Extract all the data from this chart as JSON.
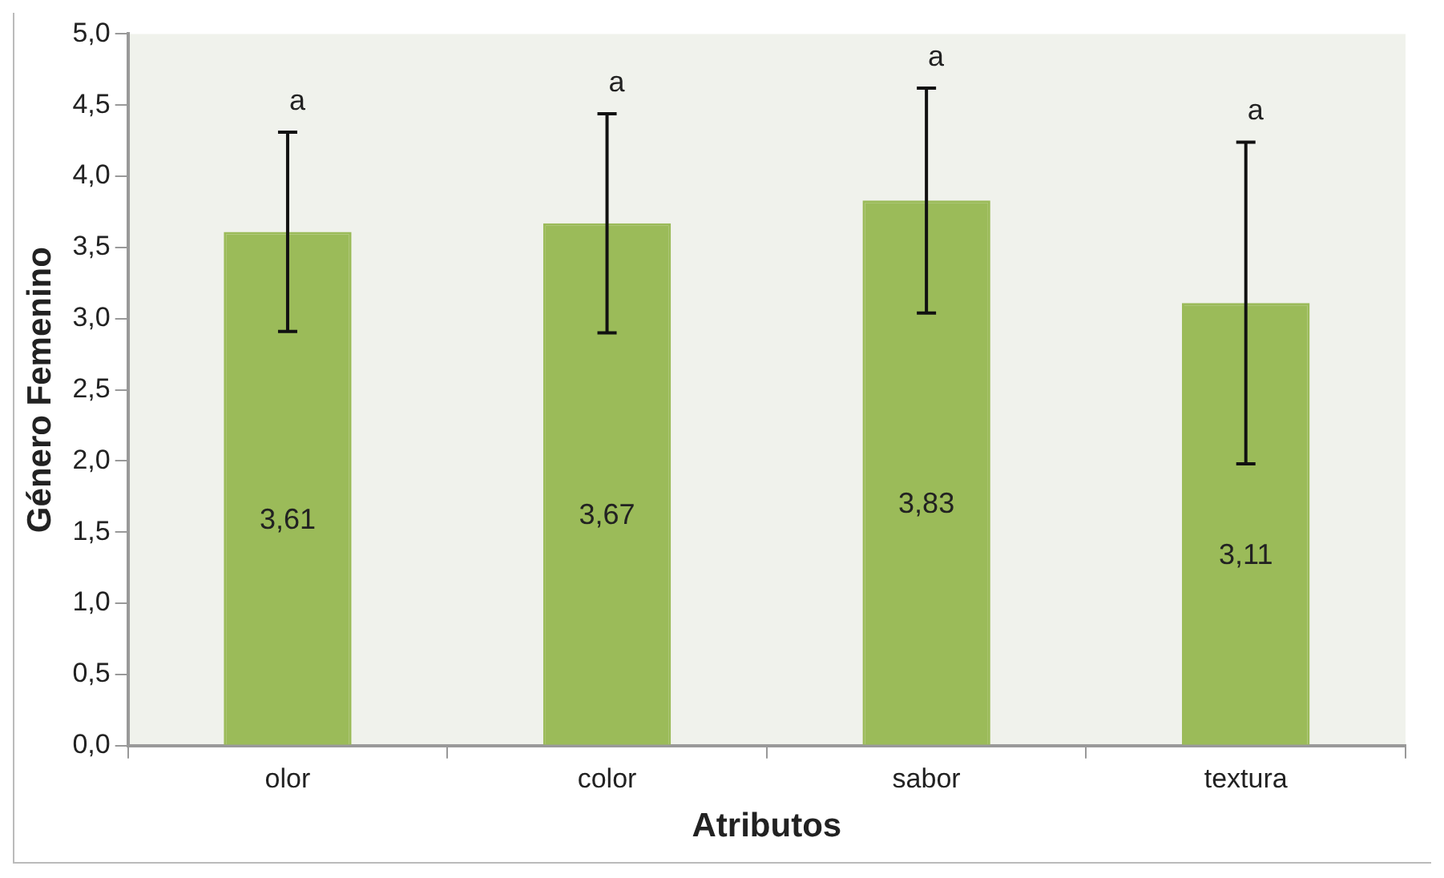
{
  "chart_data": {
    "type": "bar",
    "xlabel": "Atributos",
    "ylabel": "Género Femenino",
    "categories": [
      "olor",
      "color",
      "sabor",
      "textura"
    ],
    "values": [
      3.61,
      3.67,
      3.83,
      3.11
    ],
    "value_labels": [
      "3,61",
      "3,67",
      "3,83",
      "3,11"
    ],
    "errors": [
      0.7,
      0.77,
      0.79,
      1.13
    ],
    "color": "#9bbb59",
    "ylim": [
      0,
      5
    ],
    "yticks": [
      {
        "value": 0,
        "label": "0,0"
      },
      {
        "value": 0.5,
        "label": "0,5"
      },
      {
        "value": 1,
        "label": "1,0"
      },
      {
        "value": 1.5,
        "label": "1,5"
      },
      {
        "value": 2,
        "label": "2,0"
      },
      {
        "value": 2.5,
        "label": "2,5"
      },
      {
        "value": 3,
        "label": "3,0"
      },
      {
        "value": 3.5,
        "label": "3,5"
      },
      {
        "value": 4,
        "label": "4,0"
      },
      {
        "value": 4.5,
        "label": "4,5"
      },
      {
        "value": 5,
        "label": "5,0"
      }
    ],
    "annotations": [
      "a",
      "a",
      "a",
      "a"
    ],
    "grid": false,
    "legend": false
  }
}
